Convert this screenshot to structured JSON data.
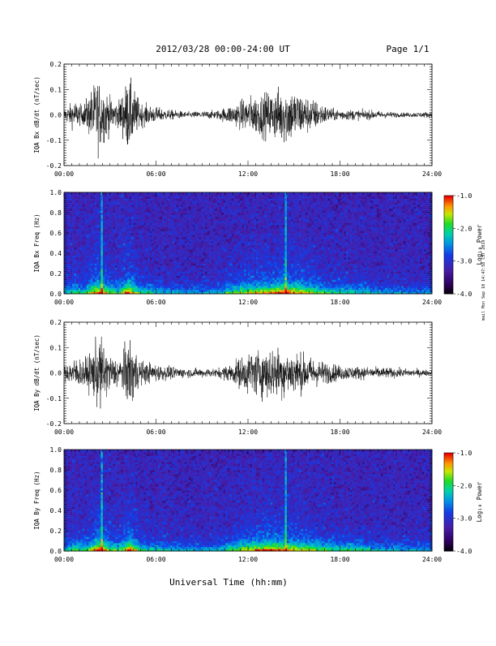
{
  "header": {
    "date_range": "2012/03/28  00:00-24:00 UT",
    "page": "Page 1/1"
  },
  "side_stamp": "mail Mon Sep 10 14:47:58 CST 2019",
  "xlabel": "Universal Time (hh:mm)",
  "chart_data": [
    {
      "type": "line",
      "ylabel": "IQA Bx dB/dt (nT/sec)",
      "x_ticks": [
        "00:00",
        "06:00",
        "12:00",
        "18:00",
        "24:00"
      ],
      "y_ticks": [
        "0.2",
        "0.1",
        "0.0",
        "-0.1",
        "-0.2"
      ],
      "ylim": [
        -0.2,
        0.2
      ],
      "xlim_hours": [
        0,
        24
      ],
      "activity_envelope": [
        {
          "t": 0.0,
          "a": 0.04
        },
        {
          "t": 0.7,
          "a": 0.1
        },
        {
          "t": 1.2,
          "a": 0.06
        },
        {
          "t": 2.2,
          "a": 0.25
        },
        {
          "t": 3.0,
          "a": 0.12
        },
        {
          "t": 3.5,
          "a": 0.08
        },
        {
          "t": 4.2,
          "a": 0.25
        },
        {
          "t": 5.0,
          "a": 0.08
        },
        {
          "t": 6.5,
          "a": 0.04
        },
        {
          "t": 8.0,
          "a": 0.02
        },
        {
          "t": 10.0,
          "a": 0.03
        },
        {
          "t": 11.0,
          "a": 0.07
        },
        {
          "t": 12.0,
          "a": 0.12
        },
        {
          "t": 13.5,
          "a": 0.16
        },
        {
          "t": 14.5,
          "a": 0.2
        },
        {
          "t": 16.0,
          "a": 0.12
        },
        {
          "t": 17.5,
          "a": 0.04
        },
        {
          "t": 20.0,
          "a": 0.03
        },
        {
          "t": 22.0,
          "a": 0.015
        },
        {
          "t": 24.0,
          "a": 0.02
        }
      ]
    },
    {
      "type": "heatmap",
      "ylabel": "IQA Bx Freq (Hz)",
      "x_ticks": [
        "00:00",
        "06:00",
        "12:00",
        "18:00",
        "24:00"
      ],
      "y_ticks": [
        "1.0",
        "0.8",
        "0.6",
        "0.4",
        "0.2",
        "0.0"
      ],
      "ylim": [
        0,
        1
      ],
      "colorbar": {
        "label": "Log₁₀ Power",
        "ticks": [
          "-1.0",
          "-2.0",
          "-3.0",
          "-4.0"
        ],
        "range": [
          -4,
          -1
        ]
      },
      "vertical_lines_hours": [
        2.5,
        14.5
      ]
    },
    {
      "type": "line",
      "ylabel": "IQA By dB/dt (nT/sec)",
      "x_ticks": [
        "00:00",
        "06:00",
        "12:00",
        "18:00",
        "24:00"
      ],
      "y_ticks": [
        "0.2",
        "0.1",
        "0.0",
        "-0.1",
        "-0.2"
      ],
      "ylim": [
        -0.2,
        0.2
      ],
      "xlim_hours": [
        0,
        24
      ],
      "activity_envelope": [
        {
          "t": 0.0,
          "a": 0.05
        },
        {
          "t": 0.7,
          "a": 0.1
        },
        {
          "t": 1.5,
          "a": 0.1
        },
        {
          "t": 2.3,
          "a": 0.25
        },
        {
          "t": 3.0,
          "a": 0.12
        },
        {
          "t": 3.7,
          "a": 0.1
        },
        {
          "t": 4.3,
          "a": 0.25
        },
        {
          "t": 5.0,
          "a": 0.08
        },
        {
          "t": 6.5,
          "a": 0.05
        },
        {
          "t": 8.0,
          "a": 0.03
        },
        {
          "t": 10.0,
          "a": 0.03
        },
        {
          "t": 11.0,
          "a": 0.07
        },
        {
          "t": 12.0,
          "a": 0.14
        },
        {
          "t": 13.5,
          "a": 0.18
        },
        {
          "t": 15.0,
          "a": 0.15
        },
        {
          "t": 16.5,
          "a": 0.09
        },
        {
          "t": 18.0,
          "a": 0.05
        },
        {
          "t": 20.0,
          "a": 0.04
        },
        {
          "t": 22.0,
          "a": 0.03
        },
        {
          "t": 24.0,
          "a": 0.02
        }
      ]
    },
    {
      "type": "heatmap",
      "ylabel": "IQA By Freq (Hz)",
      "x_ticks": [
        "00:00",
        "06:00",
        "12:00",
        "18:00",
        "24:00"
      ],
      "y_ticks": [
        "1.0",
        "0.8",
        "0.6",
        "0.4",
        "0.2",
        "0.0"
      ],
      "ylim": [
        0,
        1
      ],
      "colorbar": {
        "label": "Log₁₀ Power",
        "ticks": [
          "-1.0",
          "-2.0",
          "-3.0",
          "-4.0"
        ],
        "range": [
          -4,
          -1
        ]
      },
      "vertical_lines_hours": [
        2.5,
        14.5
      ]
    }
  ]
}
